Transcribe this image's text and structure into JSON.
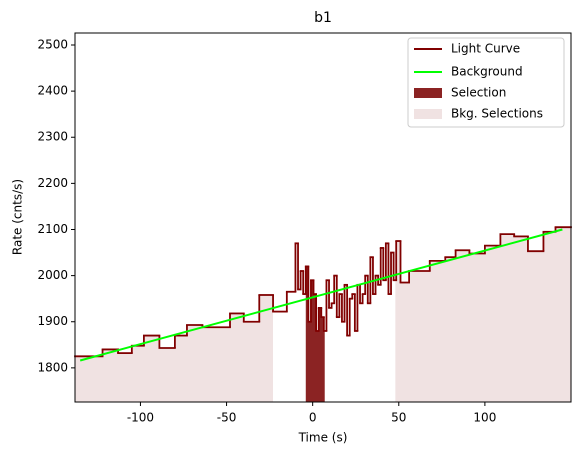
{
  "chart_data": {
    "type": "line",
    "title": "b1",
    "x_label": "Time (s)",
    "y_label": "Rate (cnts/s)",
    "xlim": [
      -138,
      150
    ],
    "ylim": [
      1726,
      2526
    ],
    "xticks": [
      -100,
      -50,
      0,
      50,
      100
    ],
    "yticks": [
      1800,
      1900,
      2000,
      2100,
      2200,
      2300,
      2400,
      2500
    ],
    "legend": "upper right",
    "x": [
      -138,
      -122,
      -113,
      -105,
      -98,
      -89,
      -80,
      -73,
      -64,
      -48,
      -40,
      -31,
      -23,
      -15,
      -10,
      -8.5,
      -7,
      -5.5,
      -4,
      -2.5,
      -1,
      0.5,
      2,
      3.5,
      5,
      6.5,
      8,
      9.5,
      11,
      12.5,
      14,
      15.5,
      17,
      18.5,
      20,
      21.5,
      23,
      24.5,
      26,
      27.5,
      29,
      30.5,
      32,
      33.5,
      35,
      36.5,
      38,
      39.5,
      41,
      42.5,
      44,
      45.5,
      47,
      48.5,
      51,
      56,
      68,
      77,
      83,
      91,
      100,
      109,
      117,
      125,
      134,
      141
    ],
    "series": [
      {
        "name": "Light Curve",
        "color": "#800000",
        "values": [
          1825,
          1840,
          1832,
          1848,
          1870,
          1843,
          1870,
          1893,
          1888,
          1918,
          1900,
          1958,
          1922,
          1965,
          2070,
          1970,
          2010,
          1960,
          2020,
          1900,
          1990,
          1960,
          1880,
          1930,
          1910,
          1880,
          1990,
          1930,
          1940,
          2000,
          1910,
          1960,
          1900,
          1980,
          1870,
          1950,
          1960,
          1880,
          1980,
          1940,
          1960,
          2000,
          1940,
          2040,
          1960,
          2000,
          1980,
          2060,
          1990,
          2070,
          1960,
          2050,
          1990,
          2075,
          1985,
          2010,
          2032,
          2040,
          2055,
          2048,
          2065,
          2090,
          2085,
          2053,
          2095,
          2105
        ]
      },
      {
        "name": "Background",
        "color": "#00ff00",
        "x": [
          -135,
          145
        ],
        "values": [
          1816,
          2100
        ]
      }
    ],
    "regions": [
      {
        "name": "Selection",
        "color": "#8b2323",
        "ranges": [
          [
            -4,
            7
          ]
        ]
      },
      {
        "name": "Bkg. Selections",
        "color": "#f0e2e2",
        "ranges": [
          [
            -138,
            -23
          ],
          [
            48,
            150
          ]
        ]
      }
    ]
  }
}
